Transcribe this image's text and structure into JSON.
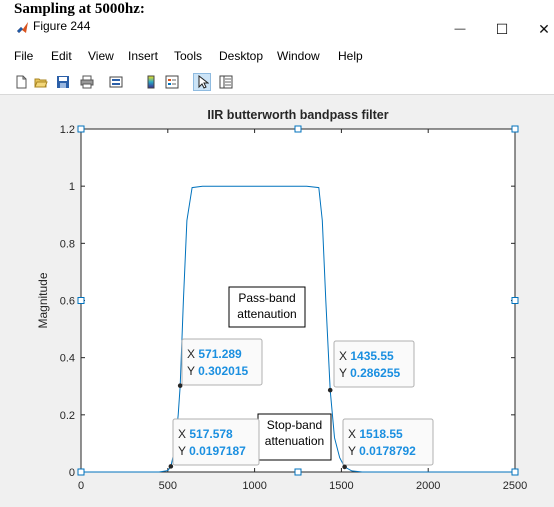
{
  "document": {
    "heading": "Sampling at 5000hz:"
  },
  "window": {
    "title": "Figure 244",
    "minimize_symbol": "—",
    "maximize_symbol": "☐",
    "close_symbol": "✕"
  },
  "menu": {
    "items": [
      "File",
      "Edit",
      "View",
      "Insert",
      "Tools",
      "Desktop",
      "Window",
      "Help"
    ]
  },
  "toolbar": {
    "icons": [
      "new-figure-icon",
      "open-file-icon",
      "save-icon",
      "print-icon",
      "link-plot-icon",
      "colorbar-icon",
      "legend-icon",
      "edit-plot-arrow-icon",
      "property-inspector-icon"
    ]
  },
  "colors": {
    "line": "#0072bd",
    "datatip_value": "#1a8fe0",
    "figure_bg": "#f0f0f0",
    "selection_handle": "#0072bd"
  },
  "chart_data": {
    "type": "line",
    "title": "IIR butterworth bandpass filter",
    "xlabel": "",
    "ylabel": "Magnitude",
    "xlim": [
      0,
      2500
    ],
    "ylim": [
      0,
      1.2
    ],
    "xticks": [
      0,
      500,
      1000,
      1500,
      2000,
      2500
    ],
    "yticks": [
      0,
      0.2,
      0.4,
      0.6,
      0.8,
      1,
      1.2
    ],
    "xtick_labels": [
      "0",
      "500",
      "1000",
      "1500",
      "2000",
      "2500"
    ],
    "ytick_labels": [
      "0",
      "0.2",
      "0.4",
      "0.6",
      "0.8",
      "1",
      "1.2"
    ],
    "grid": false,
    "series": [
      {
        "x": [
          0,
          450,
          500,
          517.578,
          540,
          560,
          571.289,
          590,
          610,
          640,
          700,
          1000,
          1300,
          1370,
          1390,
          1410,
          1435.55,
          1460,
          1490,
          1518.55,
          1560,
          1620,
          2000,
          2500
        ],
        "y": [
          0,
          0,
          0.005,
          0.0197,
          0.08,
          0.2,
          0.302,
          0.6,
          0.88,
          0.995,
          1,
          1,
          1,
          0.995,
          0.88,
          0.6,
          0.2863,
          0.12,
          0.05,
          0.0179,
          0.004,
          0,
          0,
          0
        ]
      }
    ],
    "datatips": [
      {
        "x_label": "X",
        "x_value": "571.289",
        "y_label": "Y",
        "y_value": "0.302015",
        "x": 571.289,
        "y": 0.302015
      },
      {
        "x_label": "X",
        "x_value": "1435.55",
        "y_label": "Y",
        "y_value": "0.286255",
        "x": 1435.55,
        "y": 0.286255
      },
      {
        "x_label": "X",
        "x_value": "517.578",
        "y_label": "Y",
        "y_value": "0.0197187",
        "x": 517.578,
        "y": 0.0197187
      },
      {
        "x_label": "X",
        "x_value": "1518.55",
        "y_label": "Y",
        "y_value": "0.0178792",
        "x": 1518.55,
        "y": 0.0178792
      }
    ],
    "annotations": [
      {
        "lines": [
          "Pass-band",
          "attenaution"
        ]
      },
      {
        "lines": [
          "Stop-band",
          "attenuation"
        ]
      }
    ]
  }
}
